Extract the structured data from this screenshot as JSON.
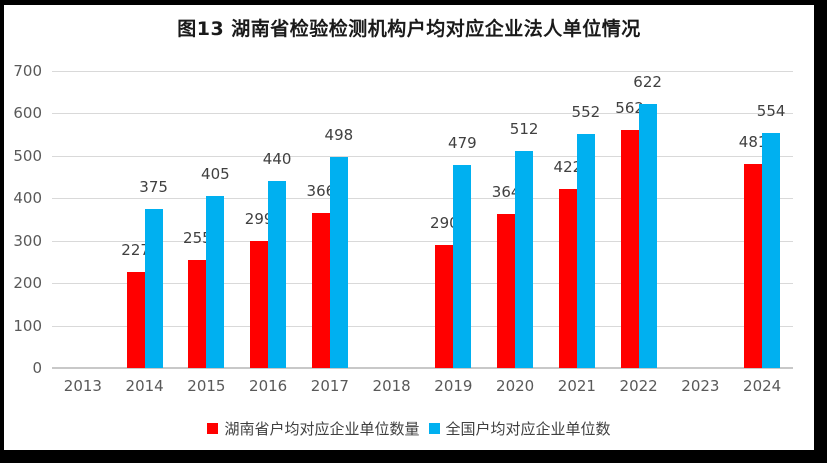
{
  "title": "图13 湖南省检验检测机构户均对应企业法人单位情况",
  "colors": {
    "hunan_series": "#ff0000",
    "national_series": "#00b0f0",
    "gridline": "#d9d9d9",
    "axis_line": "#c8c8c8",
    "tick_text": "#595959",
    "data_label_text": "#404040",
    "title_text": "#1a1a1a",
    "frame": "#000000",
    "background": "#ffffff"
  },
  "chart_data": {
    "type": "bar",
    "title": "图13 湖南省检验检测机构户均对应企业法人单位情况",
    "categories": [
      "2013",
      "2014",
      "2015",
      "2016",
      "2017",
      "2018",
      "2019",
      "2020",
      "2021",
      "2022",
      "2023",
      "2024"
    ],
    "series": [
      {
        "name": "湖南省户均对应企业单位数量",
        "color": "#ff0000",
        "values": [
          null,
          227,
          255,
          299,
          366,
          null,
          290,
          364,
          422,
          562,
          null,
          481
        ]
      },
      {
        "name": "全国户均对应企业单位数",
        "color": "#00b0f0",
        "values": [
          null,
          375,
          405,
          440,
          498,
          null,
          479,
          512,
          552,
          622,
          null,
          554
        ]
      }
    ],
    "xlabel": "",
    "ylabel": "",
    "ylim": [
      0,
      700
    ],
    "yticks": [
      0,
      100,
      200,
      300,
      400,
      500,
      600,
      700
    ],
    "grid": true,
    "data_labels": true,
    "legend_position": "bottom"
  }
}
